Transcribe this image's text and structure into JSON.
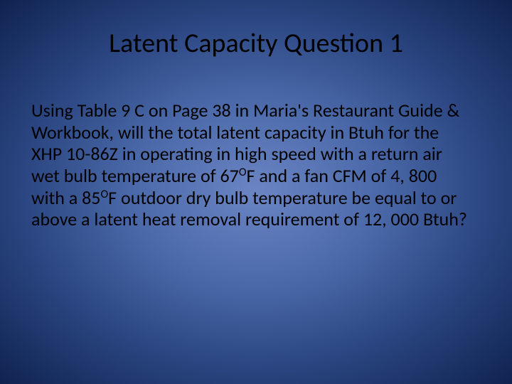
{
  "slide": {
    "title": "Latent Capacity Question 1",
    "body_pre1": "Using Table 9 C on Page 38 in Maria's Restaurant Guide & Workbook, will the total latent capacity in Btuh for the XHP 10-86Z in operating in high speed with a return air wet bulb temperature of 67",
    "deg1": "O",
    "body_mid1": "F and a fan CFM of 4, 800 with a 85",
    "deg2": "O",
    "body_post": "F outdoor dry bulb temperature be equal to or above a latent heat removal requirement of 12, 000 Btuh?",
    "background_gradient": {
      "center": "#6b85c4",
      "mid": "#4a68a8",
      "outer": "#2a4580",
      "edge": "#0f2350"
    },
    "title_fontsize": 38,
    "body_fontsize": 26,
    "text_color": "#000000",
    "font_family": "Calibri"
  }
}
